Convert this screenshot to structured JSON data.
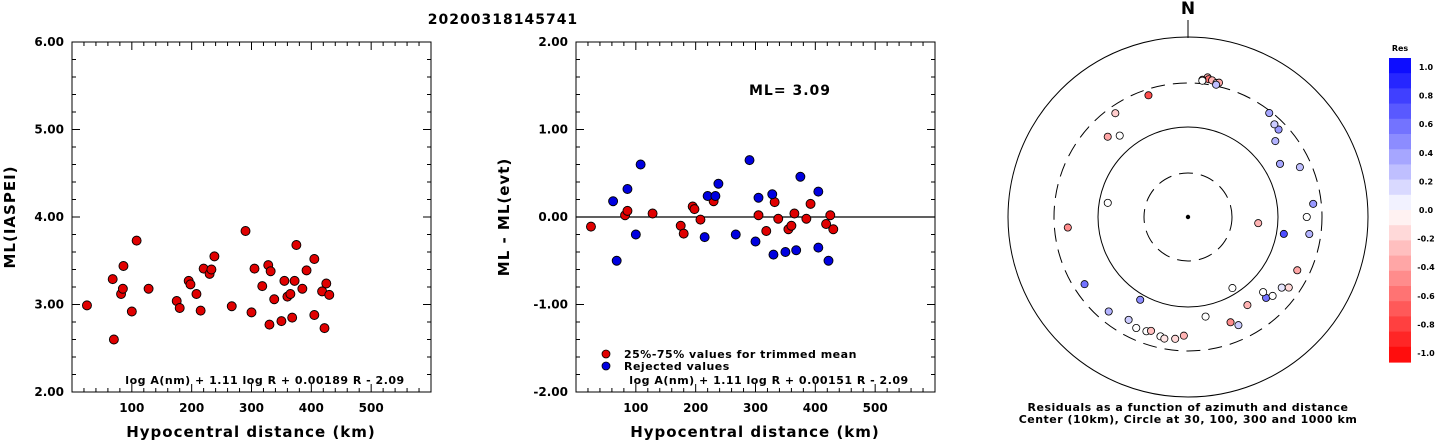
{
  "figure_title": "20200318145741",
  "chart_data": [
    {
      "type": "scatter",
      "id": "left",
      "ylabel": "ML(IASPEI)",
      "xlabel": "Hypocentral distance (km)",
      "xlim": [
        0,
        600
      ],
      "ylim": [
        2.0,
        6.0
      ],
      "xticks": [
        "100",
        "200",
        "300",
        "400",
        "500"
      ],
      "yticks": [
        "2.00",
        "3.00",
        "4.00",
        "5.00",
        "6.00"
      ],
      "annotation": "log A(nm) + 1.11 log R + 0.00189 R - 2.09",
      "marker_color": "#e00000",
      "points": [
        [
          25,
          2.99
        ],
        [
          70,
          2.6
        ],
        [
          68,
          3.29
        ],
        [
          82,
          3.12
        ],
        [
          85,
          3.18
        ],
        [
          86,
          3.44
        ],
        [
          100,
          2.92
        ],
        [
          108,
          3.73
        ],
        [
          128,
          3.18
        ],
        [
          175,
          3.04
        ],
        [
          180,
          2.96
        ],
        [
          195,
          3.27
        ],
        [
          198,
          3.23
        ],
        [
          208,
          3.12
        ],
        [
          215,
          2.93
        ],
        [
          220,
          3.41
        ],
        [
          230,
          3.35
        ],
        [
          233,
          3.4
        ],
        [
          238,
          3.55
        ],
        [
          267,
          2.98
        ],
        [
          290,
          3.84
        ],
        [
          300,
          2.91
        ],
        [
          305,
          3.41
        ],
        [
          318,
          3.21
        ],
        [
          328,
          3.45
        ],
        [
          330,
          2.77
        ],
        [
          332,
          3.38
        ],
        [
          338,
          3.06
        ],
        [
          350,
          2.81
        ],
        [
          355,
          3.27
        ],
        [
          360,
          3.09
        ],
        [
          365,
          3.12
        ],
        [
          368,
          2.85
        ],
        [
          372,
          3.27
        ],
        [
          375,
          3.68
        ],
        [
          385,
          3.18
        ],
        [
          392,
          3.39
        ],
        [
          405,
          2.88
        ],
        [
          405,
          3.52
        ],
        [
          418,
          3.15
        ],
        [
          422,
          2.73
        ],
        [
          425,
          3.24
        ],
        [
          430,
          3.11
        ]
      ]
    },
    {
      "type": "scatter",
      "id": "middle",
      "ylabel": "ML - ML(evt)",
      "xlabel": "Hypocentral distance (km)",
      "xlim": [
        0,
        600
      ],
      "ylim": [
        -2.0,
        2.0
      ],
      "xticks": [
        "100",
        "200",
        "300",
        "400",
        "500"
      ],
      "yticks": [
        "-2.00",
        "-1.00",
        "0.00",
        "1.00",
        "2.00"
      ],
      "ml_label": "ML= 3.09",
      "legend": [
        {
          "label": "25%-75% values for trimmed mean",
          "color": "#e00000"
        },
        {
          "label": "Rejected values",
          "color": "#0000e0"
        }
      ],
      "annotation": "log A(nm) + 1.11 log R + 0.00151 R - 2.09",
      "series": [
        {
          "name": "25%-75% values for trimmed mean",
          "color": "#e00000",
          "points": [
            [
              25,
              -0.11
            ],
            [
              82,
              0.02
            ],
            [
              86,
              0.07
            ],
            [
              128,
              0.04
            ],
            [
              175,
              -0.1
            ],
            [
              180,
              -0.19
            ],
            [
              195,
              0.12
            ],
            [
              198,
              0.09
            ],
            [
              208,
              -0.03
            ],
            [
              230,
              0.18
            ],
            [
              305,
              0.02
            ],
            [
              318,
              -0.16
            ],
            [
              332,
              0.17
            ],
            [
              338,
              -0.02
            ],
            [
              355,
              -0.14
            ],
            [
              360,
              -0.1
            ],
            [
              365,
              0.04
            ],
            [
              385,
              -0.02
            ],
            [
              392,
              0.15
            ],
            [
              418,
              -0.08
            ],
            [
              425,
              0.02
            ],
            [
              430,
              -0.14
            ]
          ]
        },
        {
          "name": "Rejected values",
          "color": "#0000e0",
          "points": [
            [
              62,
              0.18
            ],
            [
              68,
              -0.5
            ],
            [
              86,
              0.32
            ],
            [
              100,
              -0.2
            ],
            [
              108,
              0.6
            ],
            [
              215,
              -0.23
            ],
            [
              220,
              0.24
            ],
            [
              233,
              0.24
            ],
            [
              238,
              0.38
            ],
            [
              267,
              -0.2
            ],
            [
              290,
              0.65
            ],
            [
              300,
              -0.28
            ],
            [
              305,
              0.22
            ],
            [
              328,
              0.26
            ],
            [
              330,
              -0.43
            ],
            [
              350,
              -0.4
            ],
            [
              368,
              -0.38
            ],
            [
              375,
              0.46
            ],
            [
              405,
              0.29
            ],
            [
              405,
              -0.35
            ],
            [
              422,
              -0.5
            ]
          ]
        }
      ]
    },
    {
      "type": "polar",
      "id": "right",
      "north_label": "N",
      "caption": [
        "Residuals as a function of azimuth and distance",
        "Center (10km), Circle at 30, 100, 300 and 1000 km"
      ],
      "rings_km": [
        30,
        100,
        300,
        1000
      ],
      "points_az_dist_res": [
        [
          8,
          360,
          -0.3
        ],
        [
          8.5,
          345,
          -0.55
        ],
        [
          10,
          340,
          -0.3
        ],
        [
          12,
          325,
          -0.1
        ],
        [
          13,
          332,
          -0.35
        ],
        [
          6,
          333,
          -0.45
        ],
        [
          6,
          325,
          0.0
        ],
        [
          12,
          310,
          0.25
        ],
        [
          -18,
          258,
          -0.7
        ],
        [
          -35,
          250,
          -0.2
        ],
        [
          -40,
          150,
          0.0
        ],
        [
          -45,
          180,
          -0.35
        ],
        [
          -80,
          80,
          0.0
        ],
        [
          60,
          150,
          0.35
        ],
        [
          49,
          190,
          0.3
        ],
        [
          46,
          245,
          0.4
        ],
        [
          43,
          250,
          0.2
        ],
        [
          38,
          285,
          0.35
        ],
        [
          66,
          225,
          0.25
        ],
        [
          -95,
          215,
          -0.45
        ],
        [
          95,
          60,
          -0.3
        ],
        [
          100,
          120,
          0.7
        ],
        [
          90,
          205,
          0.0
        ],
        [
          84,
          245,
          0.4
        ],
        [
          98,
          225,
          0.3
        ],
        [
          148,
          85,
          0.0
        ],
        [
          -150,
          115,
          0.45
        ],
        [
          -123,
          230,
          0.55
        ],
        [
          -140,
          230,
          0.3
        ],
        [
          -150,
          205,
          0.2
        ],
        [
          -155,
          225,
          0.0
        ],
        [
          -160,
          220,
          0.0
        ],
        [
          -162,
          210,
          -0.25
        ],
        [
          -167,
          225,
          0.0
        ],
        [
          -169,
          233,
          -0.1
        ],
        [
          -174,
          225,
          -0.15
        ],
        [
          -178,
          205,
          -0.3
        ],
        [
          170,
          132,
          0.0
        ],
        [
          155,
          208,
          0.2
        ],
        [
          158,
          180,
          -0.45
        ],
        [
          146,
          150,
          -0.3
        ],
        [
          136,
          175,
          0.55
        ],
        [
          135,
          150,
          0.0
        ],
        [
          133,
          190,
          0.0
        ],
        [
          127,
          198,
          0.1
        ],
        [
          116,
          220,
          -0.35
        ],
        [
          125,
          228,
          -0.15
        ]
      ]
    }
  ],
  "colorbar": {
    "title": "Res",
    "labels": [
      "1.0",
      "0.8",
      "0.6",
      "0.4",
      "0.2",
      "0.0",
      "-0.2",
      "-0.4",
      "-0.6",
      "-0.8",
      "-1.0"
    ]
  }
}
